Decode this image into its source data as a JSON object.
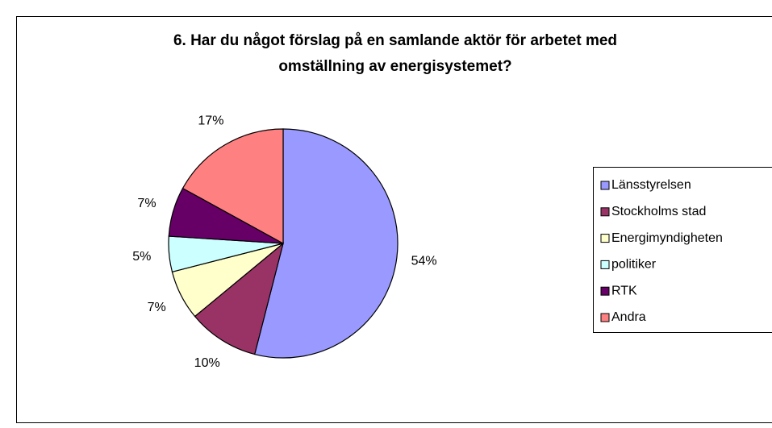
{
  "chart_data": {
    "type": "pie",
    "title": [
      "6. Har du något förslag på en samlande aktör för arbetet med",
      "omställning av energisystemet?"
    ],
    "categories": [
      "Länsstyrelsen",
      "Stockholms stad",
      "Energimyndigheten",
      "politiker",
      "RTK",
      "Andra"
    ],
    "values": [
      54,
      10,
      7,
      5,
      7,
      17
    ],
    "value_labels": [
      "54%",
      "10%",
      "7%",
      "5%",
      "7%",
      "17%"
    ],
    "colors": [
      "#9999ff",
      "#993366",
      "#ffffcc",
      "#ccffff",
      "#660066",
      "#ff8080"
    ],
    "legend": "right"
  }
}
